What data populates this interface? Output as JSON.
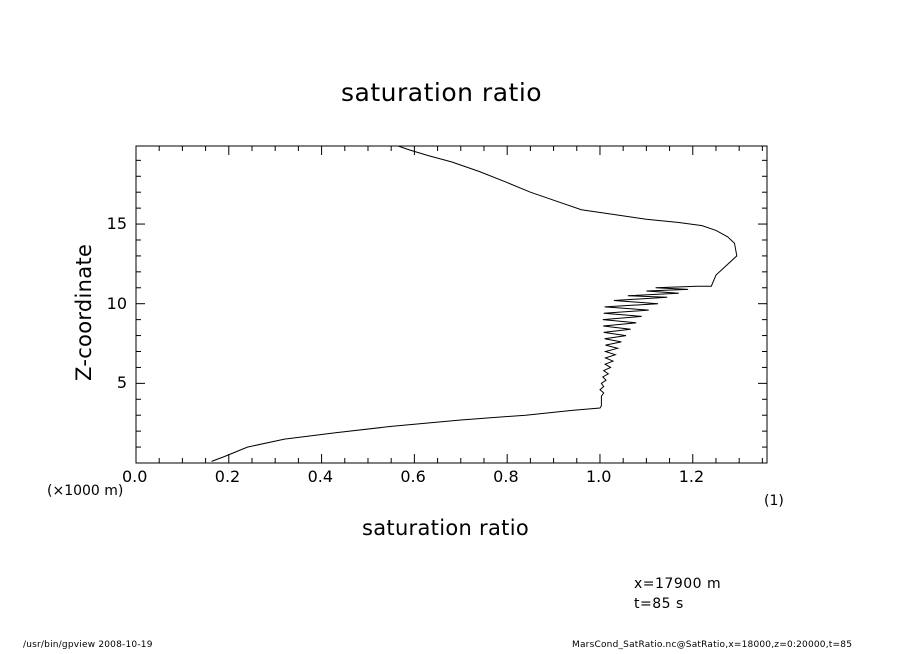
{
  "chart_data": {
    "type": "line",
    "title": "saturation ratio",
    "xlabel": "saturation ratio",
    "ylabel": "Z-coordinate",
    "y_unit": "(×1000 m)",
    "x_scale": "(1)",
    "xlim": [
      0.0,
      1.36
    ],
    "ylim": [
      0.0,
      19.9
    ],
    "xticks": [
      "0.0",
      "0.2",
      "0.4",
      "0.6",
      "0.8",
      "1.0",
      "1.2"
    ],
    "yticks": [
      "5",
      "10",
      "15"
    ],
    "grid": false,
    "series": [
      {
        "x": [
          0.163,
          0.19,
          0.24,
          0.32,
          0.43,
          0.55,
          0.7,
          0.84,
          0.94,
          1.0,
          1.003,
          1.003,
          1.008,
          1.0,
          1.008,
          1.003,
          1.013,
          1.006,
          1.018,
          1.008,
          1.023,
          1.011,
          1.028,
          1.012,
          1.033,
          1.012,
          1.038,
          1.012,
          1.046,
          1.01,
          1.056,
          1.008,
          1.066,
          1.007,
          1.078,
          1.006,
          1.09,
          1.008,
          1.105,
          1.01,
          1.125,
          1.03,
          1.145,
          1.06,
          1.17,
          1.1,
          1.19,
          1.12,
          1.21,
          1.24,
          1.25,
          1.295,
          1.29,
          1.275,
          1.25,
          1.22,
          1.17,
          1.1,
          1.03,
          0.96,
          0.9,
          0.85,
          0.8,
          0.74,
          0.68,
          0.63,
          0.59,
          0.565
        ],
        "y": [
          0.1,
          0.4,
          1.0,
          1.5,
          1.9,
          2.3,
          2.7,
          3.0,
          3.3,
          3.45,
          3.6,
          4.2,
          4.4,
          4.6,
          4.8,
          5.0,
          5.2,
          5.4,
          5.6,
          5.8,
          6.0,
          6.2,
          6.4,
          6.6,
          6.8,
          7.0,
          7.2,
          7.4,
          7.6,
          7.8,
          8.0,
          8.2,
          8.4,
          8.6,
          8.8,
          9.0,
          9.2,
          9.4,
          9.6,
          9.8,
          10.0,
          10.2,
          10.4,
          10.5,
          10.65,
          10.8,
          10.9,
          11.0,
          11.1,
          11.1,
          11.8,
          13.0,
          13.8,
          14.2,
          14.6,
          14.9,
          15.1,
          15.3,
          15.6,
          15.9,
          16.5,
          17.0,
          17.6,
          18.3,
          18.9,
          19.3,
          19.65,
          19.9
        ]
      }
    ]
  },
  "info": {
    "line1": "x=17900 m",
    "line2": "t=85 s"
  },
  "footer": {
    "left": "/usr/bin/gpview   2008-10-19",
    "right": "MarsCond_SatRatio.nc@SatRatio,x=18000,z=0:20000,t=85"
  }
}
